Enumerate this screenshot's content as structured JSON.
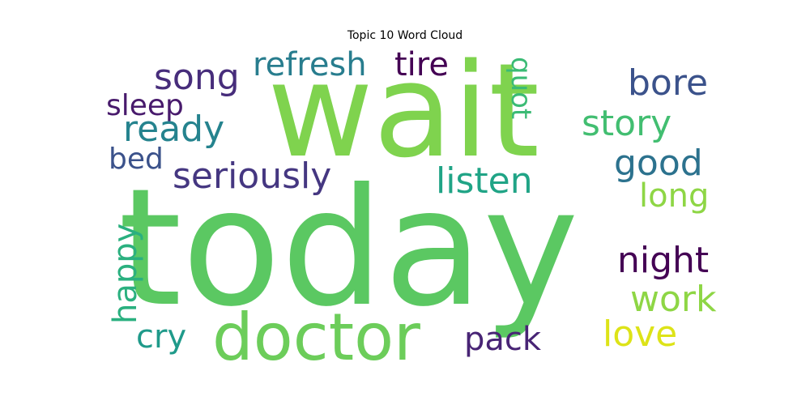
{
  "chart_data": {
    "type": "wordcloud",
    "title": "Topic 10 Word Cloud",
    "words": [
      {
        "text": "today",
        "weight": 1.0,
        "color": "#5bc862",
        "rotated": false
      },
      {
        "text": "wait",
        "weight": 0.9,
        "color": "#7fd34e",
        "rotated": false
      },
      {
        "text": "doctor",
        "weight": 0.55,
        "color": "#6ccd5a",
        "rotated": false
      },
      {
        "text": "seriously",
        "weight": 0.3,
        "color": "#453781",
        "rotated": false
      },
      {
        "text": "listen",
        "weight": 0.3,
        "color": "#20a486",
        "rotated": false
      },
      {
        "text": "good",
        "weight": 0.3,
        "color": "#2c728e",
        "rotated": false
      },
      {
        "text": "song",
        "weight": 0.3,
        "color": "#472d7b",
        "rotated": false
      },
      {
        "text": "refresh",
        "weight": 0.28,
        "color": "#287d8e",
        "rotated": false
      },
      {
        "text": "tire",
        "weight": 0.28,
        "color": "#440154",
        "rotated": false
      },
      {
        "text": "bore",
        "weight": 0.3,
        "color": "#3b528b",
        "rotated": false
      },
      {
        "text": "story",
        "weight": 0.3,
        "color": "#42be71",
        "rotated": false
      },
      {
        "text": "ready",
        "weight": 0.3,
        "color": "#25838e",
        "rotated": false
      },
      {
        "text": "night",
        "weight": 0.3,
        "color": "#440154",
        "rotated": false
      },
      {
        "text": "work",
        "weight": 0.3,
        "color": "#8ed645",
        "rotated": false
      },
      {
        "text": "love",
        "weight": 0.3,
        "color": "#dde318",
        "rotated": false
      },
      {
        "text": "pack",
        "weight": 0.28,
        "color": "#482475",
        "rotated": false
      },
      {
        "text": "cry",
        "weight": 0.28,
        "color": "#1f9a8a",
        "rotated": false
      },
      {
        "text": "long",
        "weight": 0.28,
        "color": "#8ed645",
        "rotated": false
      },
      {
        "text": "sleep",
        "weight": 0.25,
        "color": "#481a6c",
        "rotated": false
      },
      {
        "text": "bed",
        "weight": 0.25,
        "color": "#3b528b",
        "rotated": false
      },
      {
        "text": "happy",
        "weight": 0.28,
        "color": "#2ab07f",
        "rotated": true
      },
      {
        "text": "quot",
        "weight": 0.22,
        "color": "#3bbb75",
        "rotated": true
      }
    ]
  }
}
